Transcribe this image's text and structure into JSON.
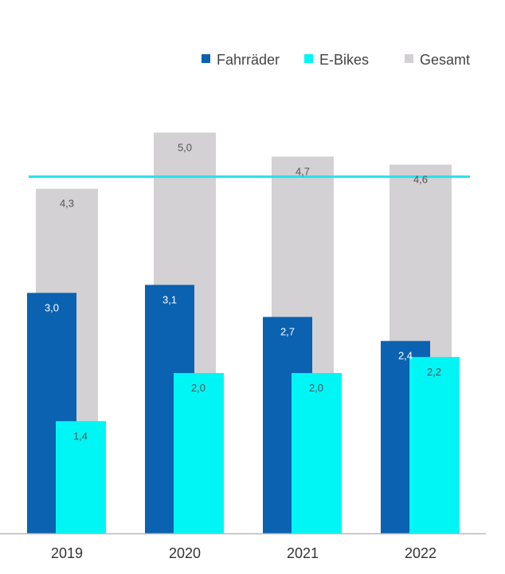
{
  "chart_data": {
    "type": "bar",
    "categories": [
      "2019",
      "2020",
      "2021",
      "2022"
    ],
    "series": [
      {
        "name": "Fahrräder",
        "values": [
          3.0,
          3.1,
          2.7,
          2.4
        ],
        "labels": [
          "3,0",
          "3,1",
          "2,7",
          "2,4"
        ],
        "color": "#0a62b0",
        "label_color": "#ffffff"
      },
      {
        "name": "E-Bikes",
        "values": [
          1.4,
          2.0,
          2.0,
          2.2
        ],
        "labels": [
          "1,4",
          "2,0",
          "2,0",
          "2,2"
        ],
        "color": "#00f5f5",
        "label_color": "#555555"
      },
      {
        "name": "Gesamt",
        "values": [
          4.3,
          5.0,
          4.7,
          4.6
        ],
        "labels": [
          "4,3",
          "5,0",
          "4,7",
          "4,6"
        ],
        "color": "#d3d1d3",
        "label_color": "#555555"
      }
    ],
    "reference_line": {
      "value": 4.45,
      "color": "#29dfe8"
    },
    "legend_position": "top-right",
    "grid": false,
    "title": "",
    "xlabel": "",
    "ylabel": "",
    "ylim": [
      0,
      5.6
    ]
  }
}
